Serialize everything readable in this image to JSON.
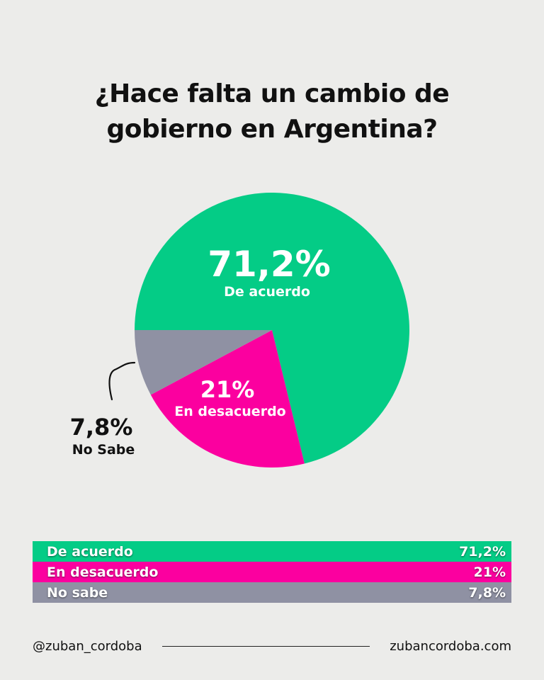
{
  "title_lines": [
    "¿Hace falta un cambio de",
    "gobierno en Argentina?"
  ],
  "chart_data": {
    "type": "pie",
    "title": "¿Hace falta un cambio de gobierno en Argentina?",
    "categories": [
      "De acuerdo",
      "En desacuerdo",
      "No Sabe"
    ],
    "values": [
      71.2,
      21,
      7.8
    ],
    "value_labels": [
      "71,2%",
      "21%",
      "7,8%"
    ],
    "colors": [
      "#04cc86",
      "#fb009f",
      "#8f91a3"
    ]
  },
  "legend": [
    {
      "label": "De acuerdo",
      "value": "71,2%",
      "color": "#04cc86"
    },
    {
      "label": "En desacuerdo",
      "value": "21%",
      "color": "#fb009f"
    },
    {
      "label": "No sabe",
      "value": "7,8%",
      "color": "#8f91a3"
    }
  ],
  "footer": {
    "handle": "@zuban_cordoba",
    "website": "zubancordoba.com"
  }
}
